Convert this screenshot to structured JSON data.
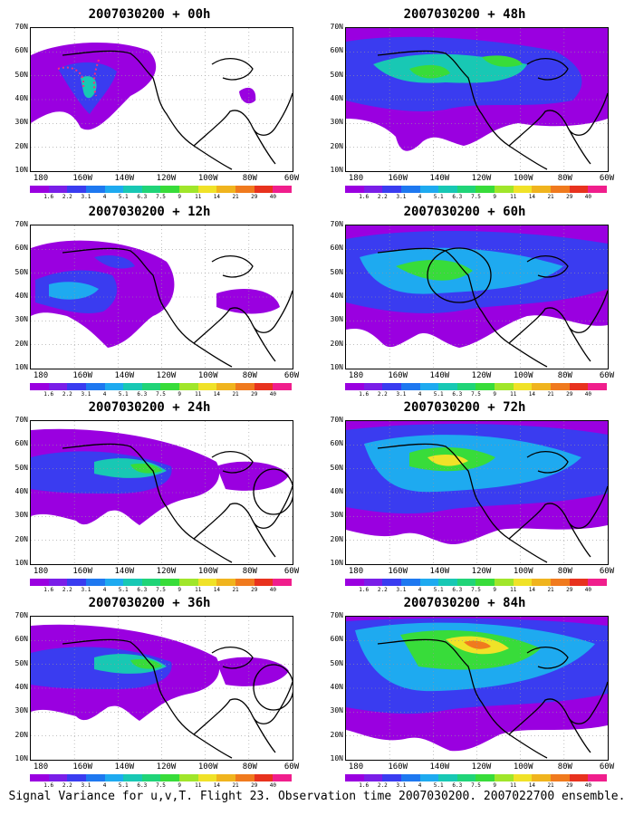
{
  "caption": "Signal Variance for u,v,T. Flight 23. Observation time 2007030200. 2007022700 ensemble.",
  "lat_labels": [
    "70N",
    "60N",
    "50N",
    "40N",
    "30N",
    "20N",
    "10N"
  ],
  "lon_labels": [
    "180",
    "160W",
    "140W",
    "120W",
    "100W",
    "80W",
    "60W"
  ],
  "colorbar": {
    "colors": [
      "#9a00e0",
      "#7a1ee8",
      "#3a3cf0",
      "#1e78f0",
      "#1eaaf0",
      "#18c8b4",
      "#20d478",
      "#38dc3a",
      "#a0e62a",
      "#f0e228",
      "#f0b41e",
      "#f07a1e",
      "#e8321e",
      "#f01e8c"
    ],
    "labels": [
      "1.6",
      "2.2",
      "3.1",
      "4",
      "5.1",
      "6.3",
      "7.5",
      "9",
      "11",
      "14",
      "21",
      "29",
      "40"
    ]
  },
  "panels": [
    {
      "id": "p00",
      "title": "2007030200 + 00h"
    },
    {
      "id": "p48",
      "title": "2007030200 + 48h"
    },
    {
      "id": "p12",
      "title": "2007030200 + 12h"
    },
    {
      "id": "p60",
      "title": "2007030200 + 60h"
    },
    {
      "id": "p24",
      "title": "2007030200 + 24h"
    },
    {
      "id": "p72",
      "title": "2007030200 + 72h"
    },
    {
      "id": "p36",
      "title": "2007030200 + 36h"
    },
    {
      "id": "p84",
      "title": "2007030200 + 84h"
    }
  ]
}
